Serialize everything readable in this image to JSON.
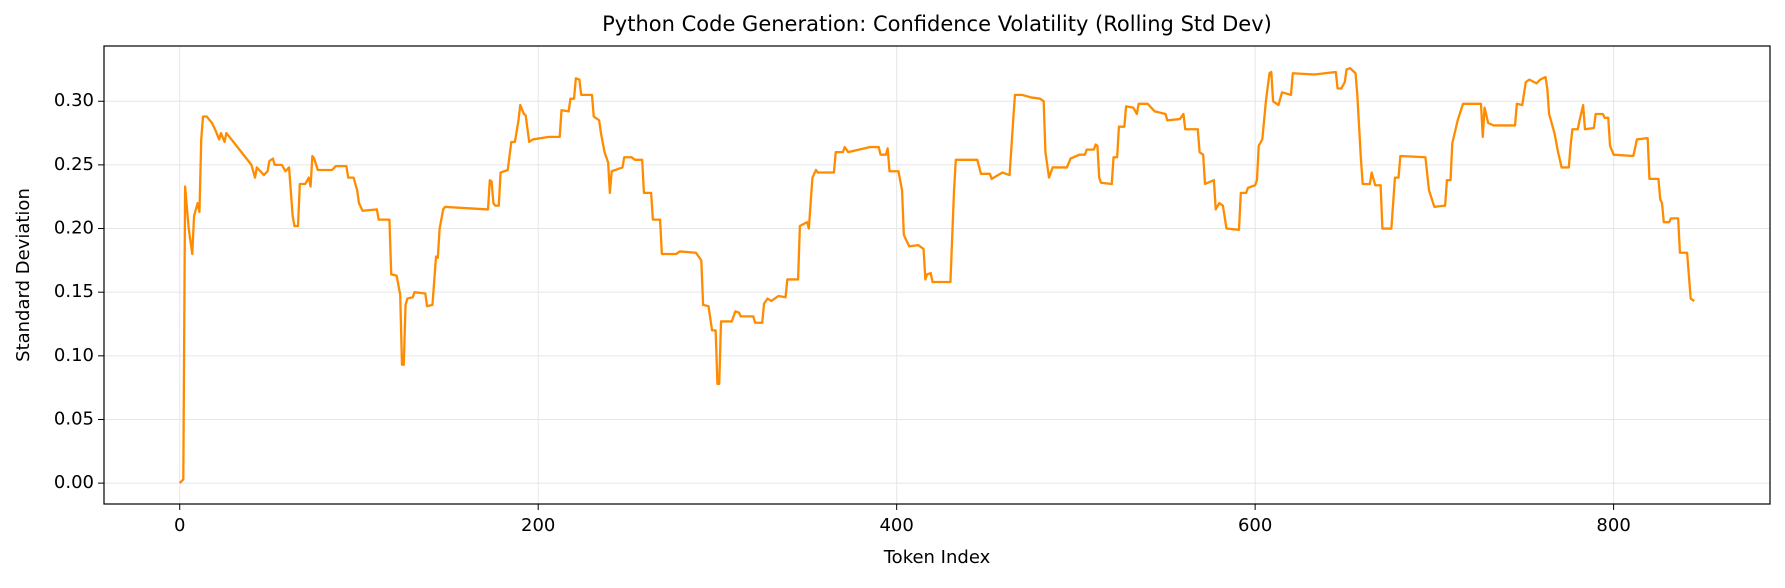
{
  "chart_data": {
    "type": "line",
    "title": "Python Code Generation: Confidence Volatility (Rolling Std Dev)",
    "xlabel": "Token Index",
    "ylabel": "Standard Deviation",
    "color": "#ff8c00",
    "grid": true,
    "xlim": [
      -42.25,
      887.25
    ],
    "xticks": [
      0,
      200,
      400,
      600,
      800
    ],
    "ylim": [
      -0.0164,
      0.3434
    ],
    "yticks": [
      {
        "value": 0,
        "label": "0.00"
      },
      {
        "value": 0.05,
        "label": "0.05"
      },
      {
        "value": 0.1,
        "label": "0.10"
      },
      {
        "value": 0.15,
        "label": "0.15"
      },
      {
        "value": 0.2,
        "label": "0.20"
      },
      {
        "value": 0.25,
        "label": "0.25"
      },
      {
        "value": 0.3,
        "label": "0.30"
      }
    ],
    "x": [
      0,
      2,
      3,
      5,
      7,
      8,
      10,
      11,
      12,
      13,
      15,
      18,
      20,
      22,
      23,
      25,
      26,
      30,
      40,
      42,
      43,
      47,
      49,
      50,
      52,
      53,
      57,
      59,
      61,
      63,
      64,
      66,
      67,
      70,
      72,
      73,
      74,
      75,
      77,
      85,
      87,
      93,
      94,
      97,
      99,
      100,
      102,
      110,
      111,
      117,
      118,
      121,
      123,
      124,
      125,
      126,
      127,
      130,
      131,
      137,
      138,
      141,
      143,
      144,
      145,
      147,
      148,
      160,
      172,
      173,
      174,
      175,
      176,
      178,
      179,
      183,
      185,
      187,
      189,
      190,
      192,
      193,
      195,
      197,
      206,
      212,
      213,
      217,
      218,
      220,
      221,
      223,
      224,
      230,
      231,
      234,
      235,
      237,
      239,
      240,
      241,
      247,
      248,
      252,
      254,
      258,
      259,
      263,
      264,
      268,
      269,
      277,
      279,
      288,
      291,
      292,
      295,
      297,
      299,
      300,
      301,
      302,
      308,
      310,
      312,
      313,
      320,
      321,
      325,
      326,
      328,
      330,
      334,
      338,
      339,
      345,
      346,
      350,
      351,
      353,
      355,
      356,
      365,
      366,
      370,
      371,
      373,
      385,
      390,
      391,
      394,
      395,
      396,
      401,
      403,
      404,
      407,
      412,
      415,
      416,
      417,
      419,
      420,
      430,
      432,
      433,
      445,
      447,
      452,
      453,
      459,
      463,
      465,
      466,
      470,
      475,
      480,
      482,
      483,
      485,
      487,
      495,
      497,
      502,
      505,
      506,
      510,
      511,
      512,
      513,
      514,
      520,
      521,
      523,
      524,
      527,
      528,
      532,
      534,
      535,
      540,
      544,
      550,
      551,
      558,
      560,
      561,
      568,
      569,
      571,
      572,
      577,
      578,
      580,
      582,
      584,
      591,
      592,
      595,
      596,
      600,
      601,
      602,
      604,
      606,
      608,
      609,
      610,
      613,
      615,
      620,
      621,
      633,
      645,
      646,
      648,
      650,
      651,
      653,
      656,
      657,
      659,
      660,
      664,
      665,
      667,
      670,
      671,
      676,
      678,
      680,
      681,
      695,
      697,
      700,
      706,
      707,
      709,
      710,
      713,
      716,
      726,
      727,
      728,
      730,
      733,
      745,
      746,
      749,
      751,
      753,
      757,
      759,
      762,
      763,
      764,
      767,
      769,
      771,
      775,
      776,
      777,
      780,
      781,
      783,
      784,
      789,
      790,
      794,
      795,
      797,
      798,
      800,
      811,
      813,
      819,
      820,
      825,
      826,
      827,
      828,
      831,
      832,
      836,
      837,
      841,
      843,
      845
    ],
    "values": [
      0,
      0.003,
      0.233,
      0.2,
      0.18,
      0.21,
      0.22,
      0.213,
      0.27,
      0.288,
      0.288,
      0.283,
      0.277,
      0.27,
      0.275,
      0.268,
      0.275,
      0.268,
      0.25,
      0.24,
      0.248,
      0.242,
      0.245,
      0.253,
      0.255,
      0.25,
      0.25,
      0.245,
      0.248,
      0.21,
      0.202,
      0.202,
      0.235,
      0.235,
      0.24,
      0.233,
      0.257,
      0.255,
      0.246,
      0.246,
      0.249,
      0.249,
      0.24,
      0.24,
      0.23,
      0.22,
      0.214,
      0.215,
      0.207,
      0.207,
      0.164,
      0.163,
      0.148,
      0.093,
      0.093,
      0.14,
      0.145,
      0.146,
      0.15,
      0.149,
      0.139,
      0.14,
      0.178,
      0.177,
      0.2,
      0.215,
      0.217,
      0.216,
      0.215,
      0.238,
      0.237,
      0.22,
      0.218,
      0.218,
      0.244,
      0.246,
      0.268,
      0.268,
      0.285,
      0.297,
      0.29,
      0.289,
      0.268,
      0.27,
      0.272,
      0.272,
      0.293,
      0.292,
      0.302,
      0.302,
      0.318,
      0.317,
      0.305,
      0.305,
      0.288,
      0.285,
      0.275,
      0.26,
      0.252,
      0.228,
      0.245,
      0.248,
      0.256,
      0.256,
      0.254,
      0.254,
      0.228,
      0.228,
      0.207,
      0.207,
      0.18,
      0.18,
      0.182,
      0.181,
      0.175,
      0.14,
      0.139,
      0.12,
      0.12,
      0.078,
      0.078,
      0.127,
      0.127,
      0.135,
      0.134,
      0.131,
      0.131,
      0.126,
      0.126,
      0.141,
      0.145,
      0.143,
      0.147,
      0.146,
      0.16,
      0.16,
      0.202,
      0.205,
      0.2,
      0.24,
      0.246,
      0.244,
      0.244,
      0.26,
      0.26,
      0.264,
      0.26,
      0.264,
      0.264,
      0.258,
      0.258,
      0.263,
      0.245,
      0.245,
      0.23,
      0.195,
      0.186,
      0.187,
      0.184,
      0.16,
      0.164,
      0.165,
      0.158,
      0.158,
      0.23,
      0.254,
      0.254,
      0.243,
      0.243,
      0.239,
      0.244,
      0.242,
      0.285,
      0.305,
      0.305,
      0.303,
      0.302,
      0.3,
      0.26,
      0.24,
      0.248,
      0.248,
      0.255,
      0.258,
      0.258,
      0.262,
      0.262,
      0.266,
      0.265,
      0.24,
      0.236,
      0.235,
      0.256,
      0.256,
      0.28,
      0.28,
      0.296,
      0.295,
      0.29,
      0.298,
      0.298,
      0.292,
      0.29,
      0.285,
      0.286,
      0.29,
      0.278,
      0.278,
      0.26,
      0.258,
      0.235,
      0.238,
      0.215,
      0.22,
      0.218,
      0.2,
      0.199,
      0.228,
      0.228,
      0.232,
      0.234,
      0.238,
      0.265,
      0.27,
      0.3,
      0.322,
      0.323,
      0.3,
      0.297,
      0.307,
      0.305,
      0.322,
      0.321,
      0.323,
      0.31,
      0.31,
      0.315,
      0.325,
      0.326,
      0.322,
      0.305,
      0.255,
      0.235,
      0.235,
      0.244,
      0.234,
      0.234,
      0.2,
      0.2,
      0.24,
      0.24,
      0.257,
      0.256,
      0.23,
      0.217,
      0.218,
      0.238,
      0.238,
      0.267,
      0.285,
      0.298,
      0.298,
      0.272,
      0.295,
      0.283,
      0.281,
      0.281,
      0.298,
      0.297,
      0.315,
      0.317,
      0.314,
      0.317,
      0.319,
      0.31,
      0.29,
      0.275,
      0.26,
      0.248,
      0.248,
      0.265,
      0.278,
      0.278,
      0.285,
      0.297,
      0.278,
      0.279,
      0.29,
      0.29,
      0.287,
      0.287,
      0.265,
      0.258,
      0.257,
      0.27,
      0.271,
      0.239,
      0.239,
      0.223,
      0.22,
      0.205,
      0.205,
      0.208,
      0.208,
      0.181,
      0.181,
      0.145,
      0.143
    ]
  }
}
